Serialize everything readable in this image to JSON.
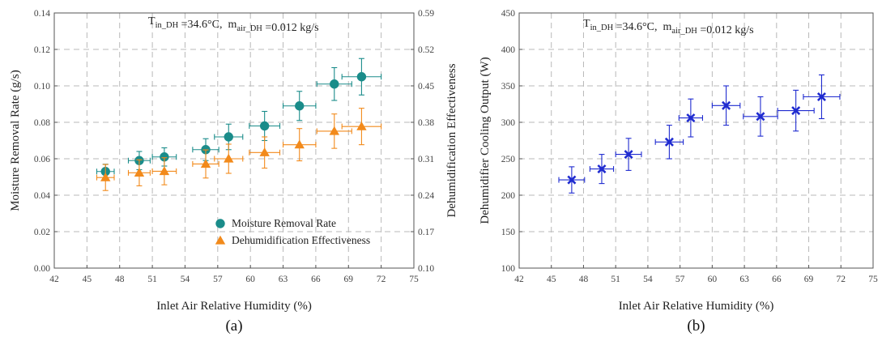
{
  "chart_data": [
    {
      "panel_label": "(a)",
      "type": "scatter",
      "annotation": {
        "t_main": "T",
        "t_sub": "in_DH",
        "t_val": " =34.6°C,",
        "m_main": "m",
        "m_sub": "air_DH",
        "m_val": " =0.012 kg/s"
      },
      "xlabel": "Inlet Air Relative Humidity (%)",
      "ylabel_left": "Moisture Removal Rate (g/s)",
      "ylabel_right": "Dehumidification Effectiveness",
      "xlim": [
        42,
        75
      ],
      "ylim_left": [
        0.0,
        0.14
      ],
      "ylim_right": [
        0.1,
        0.59
      ],
      "xticks": [
        "42",
        "45",
        "48",
        "51",
        "54",
        "57",
        "60",
        "63",
        "66",
        "69",
        "72",
        "75"
      ],
      "yticks_left": [
        "0.00",
        "0.02",
        "0.04",
        "0.06",
        "0.08",
        "0.10",
        "0.12",
        "0.14"
      ],
      "yticks_right": [
        "0.10",
        "0.17",
        "0.24",
        "0.31",
        "0.38",
        "0.45",
        "0.52",
        "0.59"
      ],
      "grid": true,
      "legend_position": "bottom-right",
      "series": [
        {
          "name": "Moisture Removal Rate",
          "axis": "left",
          "color": "#1a8c8a",
          "marker": "circle",
          "x": [
            46.7,
            49.8,
            52.1,
            55.9,
            58.0,
            61.3,
            64.5,
            67.7,
            70.2
          ],
          "y": [
            0.053,
            0.059,
            0.061,
            0.065,
            0.072,
            0.078,
            0.089,
            0.101,
            0.105
          ],
          "x_err": [
            0.8,
            1.0,
            1.1,
            1.2,
            1.3,
            1.4,
            1.5,
            1.6,
            1.8
          ],
          "y_err": [
            0.004,
            0.005,
            0.005,
            0.006,
            0.007,
            0.008,
            0.008,
            0.009,
            0.01
          ]
        },
        {
          "name": "Dehumidification Effectiveness",
          "axis": "right",
          "color": "#f28a1b",
          "marker": "triangle",
          "x": [
            46.7,
            49.8,
            52.1,
            55.9,
            58.0,
            61.3,
            64.5,
            67.7,
            70.2
          ],
          "y": [
            0.274,
            0.283,
            0.286,
            0.3,
            0.31,
            0.322,
            0.337,
            0.363,
            0.372
          ],
          "x_err": [
            0.8,
            1.0,
            1.1,
            1.2,
            1.3,
            1.4,
            1.5,
            1.6,
            1.8
          ],
          "y_err": [
            0.025,
            0.025,
            0.026,
            0.027,
            0.028,
            0.03,
            0.031,
            0.033,
            0.035
          ]
        }
      ]
    },
    {
      "panel_label": "(b)",
      "type": "scatter",
      "annotation": {
        "t_main": "T",
        "t_sub": "in_DH",
        "t_val": " =34.6°C,",
        "m_main": "m",
        "m_sub": "air_DH",
        "m_val": " =0.012 kg/s"
      },
      "xlabel": "Inlet Air Relative Humidity (%)",
      "ylabel": "Dehumidifier Cooling Output (W)",
      "xlim": [
        42,
        75
      ],
      "ylim": [
        100,
        450
      ],
      "xticks": [
        "42",
        "45",
        "48",
        "51",
        "54",
        "57",
        "60",
        "63",
        "66",
        "69",
        "72",
        "75"
      ],
      "yticks": [
        "100",
        "150",
        "200",
        "250",
        "300",
        "350",
        "400",
        "450"
      ],
      "grid": true,
      "series": [
        {
          "color": "#1f2bd0",
          "marker": "x",
          "x": [
            46.9,
            49.7,
            52.2,
            56.0,
            58.0,
            61.3,
            64.5,
            67.8,
            70.2
          ],
          "y": [
            221,
            236,
            256,
            273,
            306,
            323,
            308,
            316,
            335
          ],
          "x_err": [
            1.2,
            1.1,
            1.2,
            1.3,
            1.1,
            1.3,
            1.6,
            1.7,
            1.7
          ],
          "y_err": [
            18,
            20,
            22,
            23,
            26,
            27,
            27,
            28,
            30
          ]
        }
      ]
    }
  ]
}
